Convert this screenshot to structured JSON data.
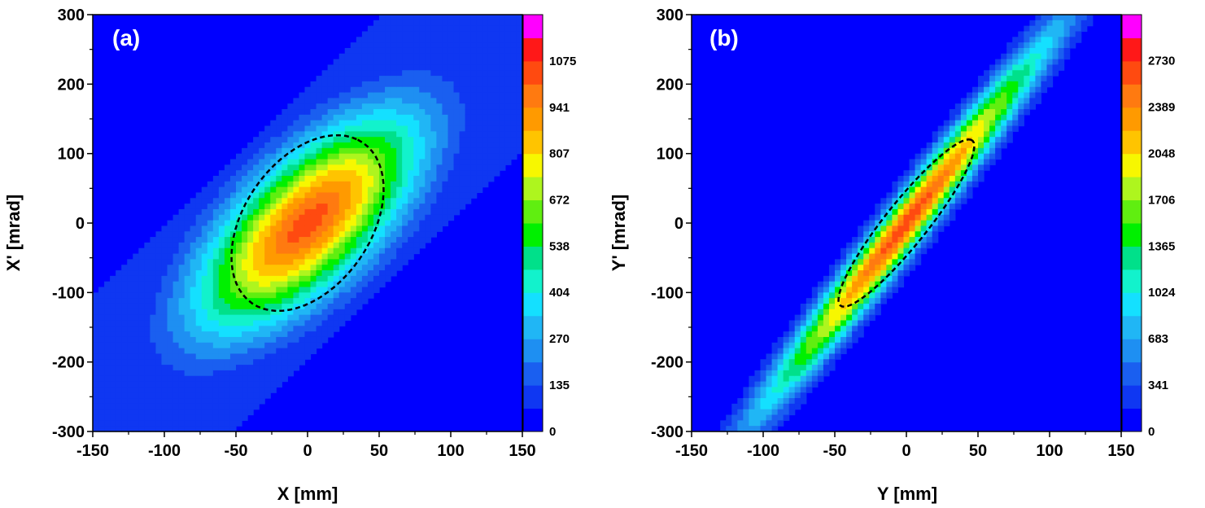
{
  "chart_data": [
    {
      "type": "heatmap",
      "panel_label": "(a)",
      "xlabel": "X [mm]",
      "ylabel": "X' [mrad]",
      "xlim": [
        -150,
        150
      ],
      "ylim": [
        -300,
        300
      ],
      "xticks": [
        "-150",
        "-100",
        "-50",
        "0",
        "50",
        "100",
        "150"
      ],
      "yticks": [
        "300",
        "200",
        "100",
        "0",
        "-100",
        "-200",
        "-300"
      ],
      "colorbar": {
        "min": 0,
        "max": 1210,
        "tick_labels": [
          "1075",
          "941",
          "807",
          "672",
          "538",
          "404",
          "270",
          "135",
          "0"
        ],
        "tick_values": [
          1075,
          941,
          807,
          672,
          538,
          404,
          270,
          135,
          0
        ]
      },
      "distribution": {
        "center_x": 0,
        "center_y": 0,
        "slope_mrad_per_mm": 2.0,
        "sigma_along_mm": 70,
        "sigma_across_mm": 30,
        "peak": 1100,
        "background": 110
      },
      "ellipse": {
        "center_x": 0,
        "center_y": 0,
        "semi_major_dir": [
          35,
          120
        ],
        "semi_minor_dir": [
          40,
          -40
        ]
      }
    },
    {
      "type": "heatmap",
      "panel_label": "(b)",
      "xlabel": "Y [mm]",
      "ylabel": "Y' [mrad]",
      "xlim": [
        -150,
        150
      ],
      "ylim": [
        -300,
        300
      ],
      "xticks": [
        "-150",
        "-100",
        "-50",
        "0",
        "50",
        "100",
        "150"
      ],
      "yticks": [
        "300",
        "200",
        "100",
        "0",
        "-100",
        "-200",
        "-300"
      ],
      "colorbar": {
        "min": 0,
        "max": 3070,
        "tick_labels": [
          "2730",
          "2389",
          "2048",
          "1706",
          "1365",
          "1024",
          "683",
          "341",
          "0"
        ],
        "tick_values": [
          2730,
          2389,
          2048,
          1706,
          1365,
          1024,
          683,
          341,
          0
        ]
      },
      "distribution": {
        "center_x": 0,
        "center_y": 0,
        "slope_mrad_per_mm": 2.65,
        "sigma_along_mm": 95,
        "sigma_across_mm": 9,
        "peak": 2800,
        "background": 0
      },
      "ellipse": {
        "center_x": 0,
        "center_y": 0,
        "semi_major_dir": [
          45,
          120
        ],
        "semi_minor_dir": [
          15,
          -10
        ]
      }
    }
  ],
  "colors": {
    "scale": [
      "#0000ff",
      "#0f37f2",
      "#1a5ff0",
      "#1e8ff2",
      "#20b6f5",
      "#14e0ff",
      "#12f2cc",
      "#00e08a",
      "#00f000",
      "#60ee10",
      "#aef51e",
      "#f7f700",
      "#ffc400",
      "#ff9a00",
      "#ff7a10",
      "#ff4a10",
      "#ff1818",
      "#ff00ff"
    ],
    "ellipse": "#000000",
    "panel_label": "#ffffff"
  }
}
